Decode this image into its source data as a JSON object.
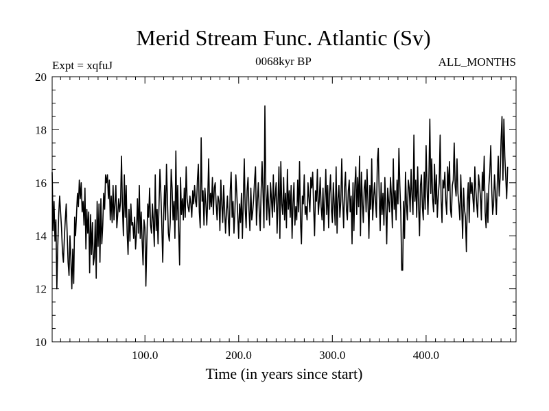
{
  "chart_data": {
    "type": "line",
    "title": "Merid Stream Func. Atlantic (Sv)",
    "left_label": "Expt = xqfuJ",
    "center_label": "0068kyr BP",
    "right_label": "ALL_MONTHS",
    "xlabel": "Time (in years since start)",
    "ylabel": "",
    "xlim": [
      1,
      496
    ],
    "ylim": [
      10,
      20
    ],
    "x_ticks": [
      100,
      200,
      300,
      400
    ],
    "x_tick_labels": [
      "100.0",
      "200.0",
      "300.0",
      "400.0"
    ],
    "y_ticks": [
      10,
      12,
      14,
      16,
      18,
      20
    ],
    "y_tick_labels": [
      "10",
      "12",
      "14",
      "16",
      "18",
      "20"
    ],
    "series": [
      {
        "name": "Merid Stream Func. Atlantic",
        "color": "#000000",
        "x_start": 1,
        "x_step": 1,
        "values": [
          16.4,
          14.2,
          15.3,
          13.8,
          14.6,
          12.0,
          13.6,
          14.8,
          15.5,
          14.9,
          14.3,
          13.4,
          13.0,
          13.9,
          14.6,
          15.2,
          14.1,
          13.0,
          12.5,
          14.0,
          13.1,
          12.0,
          13.5,
          12.2,
          14.7,
          14.0,
          14.8,
          15.6,
          15.1,
          16.1,
          15.4,
          16.0,
          14.9,
          15.3,
          14.4,
          15.8,
          13.5,
          15.0,
          14.1,
          14.9,
          12.6,
          14.8,
          13.3,
          14.5,
          12.9,
          13.2,
          14.6,
          12.4,
          15.3,
          13.6,
          15.2,
          13.0,
          15.4,
          13.7,
          14.4,
          15.6,
          15.0,
          16.3,
          16.0,
          16.3,
          15.4,
          16.1,
          14.6,
          15.5,
          14.5,
          15.9,
          14.6,
          15.2,
          15.9,
          14.3,
          14.8,
          15.4,
          14.9,
          15.3,
          17.0,
          15.1,
          14.0,
          16.3,
          14.7,
          15.9,
          14.1,
          13.3,
          15.0,
          13.8,
          15.2,
          14.4,
          14.5,
          13.9,
          14.7,
          13.5,
          14.1,
          15.4,
          14.1,
          15.9,
          13.9,
          14.9,
          13.8,
          12.9,
          14.6,
          14.3,
          12.1,
          13.7,
          15.2,
          14.7,
          15.8,
          14.4,
          14.1,
          15.2,
          14.5,
          13.6,
          16.3,
          14.2,
          15.0,
          13.7,
          15.1,
          16.5,
          15.6,
          14.4,
          13.0,
          14.8,
          15.9,
          14.6,
          16.7,
          15.4,
          14.1,
          13.8,
          14.5,
          16.5,
          15.8,
          14.6,
          15.3,
          13.9,
          17.2,
          14.6,
          15.9,
          14.2,
          12.9,
          16.2,
          14.8,
          15.4,
          14.6,
          15.8,
          14.7,
          16.6,
          15.4,
          15.1,
          14.9,
          15.5,
          15.2,
          14.7,
          15.7,
          15.2,
          15.9,
          15.3,
          15.1,
          16.1,
          16.7,
          14.9,
          14.3,
          17.7,
          15.3,
          15.7,
          14.4,
          15.8,
          15.2,
          14.4,
          15.4,
          16.9,
          15.0,
          15.6,
          15.1,
          16.2,
          14.8,
          15.8,
          16.0,
          15.2,
          14.6,
          15.5,
          15.3,
          14.2,
          16.1,
          15.2,
          14.5,
          15.9,
          15.0,
          14.1,
          14.9,
          15.5,
          14.6,
          14.0,
          15.7,
          16.4,
          14.7,
          15.3,
          14.1,
          14.9,
          16.3,
          15.6,
          14.8,
          13.9,
          15.2,
          14.5,
          15.6,
          13.9,
          15.4,
          16.9,
          15.0,
          14.3,
          15.7,
          16.2,
          15.0,
          14.2,
          15.8,
          14.6,
          14.9,
          15.4,
          16.1,
          16.6,
          14.4,
          15.3,
          16.0,
          14.9,
          14.2,
          15.7,
          16.8,
          15.6,
          14.3,
          18.9,
          15.8,
          14.6,
          15.9,
          15.1,
          14.4,
          16.0,
          15.4,
          14.7,
          16.3,
          14.9,
          15.5,
          16.0,
          14.1,
          15.3,
          16.6,
          13.9,
          16.8,
          15.2,
          14.8,
          16.2,
          14.6,
          15.6,
          14.3,
          16.5,
          15.0,
          15.7,
          14.7,
          15.9,
          13.9,
          15.2,
          16.0,
          14.4,
          15.1,
          14.6,
          16.1,
          14.9,
          16.8,
          14.5,
          13.7,
          15.5,
          15.2,
          16.3,
          14.8,
          15.1,
          14.6,
          16.0,
          15.4,
          14.9,
          16.2,
          15.8,
          16.4,
          15.1,
          14.0,
          15.7,
          15.3,
          16.5,
          14.8,
          15.3,
          16.2,
          15.1,
          14.6,
          15.8,
          14.2,
          15.3,
          16.5,
          14.8,
          15.9,
          14.3,
          15.6,
          16.3,
          15.0,
          14.5,
          16.0,
          15.2,
          14.4,
          16.6,
          14.1,
          15.4,
          15.9,
          14.7,
          15.3,
          16.9,
          15.4,
          14.3,
          15.8,
          16.4,
          15.0,
          14.6,
          15.7,
          16.1,
          14.9,
          15.5,
          13.7,
          16.0,
          14.2,
          15.9,
          16.6,
          14.8,
          16.2,
          15.1,
          17.0,
          14.0,
          16.4,
          15.3,
          14.5,
          15.8,
          16.1,
          14.9,
          16.5,
          15.2,
          13.9,
          15.9,
          15.0,
          16.9,
          14.6,
          15.4,
          16.0,
          15.3,
          14.7,
          16.8,
          17.3,
          15.5,
          14.2,
          16.0,
          14.8,
          15.6,
          14.4,
          16.2,
          15.1,
          13.7,
          15.8,
          15.3,
          14.9,
          16.2,
          15.5,
          14.3,
          16.9,
          15.0,
          15.7,
          14.6,
          16.1,
          15.2,
          17.3,
          15.9,
          14.9,
          12.7,
          12.7,
          15.3,
          13.9,
          16.4,
          15.2,
          14.6,
          16.1,
          15.8,
          14.9,
          16.5,
          15.5,
          14.8,
          17.8,
          15.3,
          16.1,
          14.7,
          16.6,
          15.2,
          14.0,
          15.9,
          16.3,
          15.1,
          14.6,
          16.4,
          15.0,
          17.4,
          15.8,
          14.8,
          16.2,
          18.4,
          15.6,
          16.9,
          15.4,
          14.9,
          16.7,
          15.2,
          16.3,
          14.7,
          15.5,
          16.0,
          17.8,
          15.4,
          14.5,
          16.1,
          15.8,
          16.4,
          15.3,
          14.8,
          16.6,
          15.7,
          16.8,
          15.0,
          14.7,
          15.9,
          16.1,
          17.5,
          15.9,
          15.5,
          16.9,
          15.6,
          15.2,
          14.6,
          16.3,
          15.1,
          13.9,
          15.8,
          15.0,
          14.7,
          13.4,
          15.3,
          16.0,
          14.5,
          16.2,
          15.6,
          16.0,
          15.4,
          14.9,
          16.6,
          15.8,
          15.2,
          14.7,
          16.3,
          15.9,
          15.5,
          14.6,
          16.4,
          15.7,
          17.0,
          14.9,
          14.3,
          15.6,
          14.5,
          15.9,
          16.4,
          17.4,
          15.8,
          14.8,
          15.2,
          16.3,
          15.6,
          14.8,
          16.0,
          17.0,
          15.5,
          16.2,
          17.6,
          18.5,
          16.1,
          18.4,
          17.0,
          16.2,
          15.4,
          16.6
        ]
      }
    ]
  }
}
